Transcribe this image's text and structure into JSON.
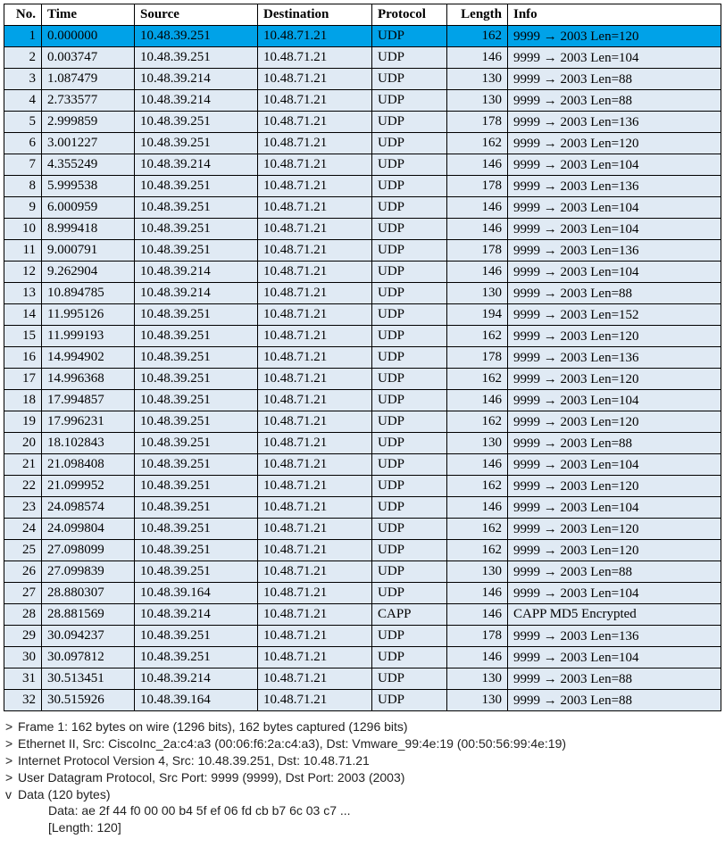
{
  "columns": [
    "No.",
    "Time",
    "Source",
    "Destination",
    "Protocol",
    "Length",
    "Info"
  ],
  "selected_row_index": 0,
  "row_bg": "#e0eaf4",
  "selected_bg": "#00a2e8",
  "rows": [
    {
      "no": "1",
      "time": "0.000000",
      "src": "10.48.39.251",
      "dst": "10.48.71.21",
      "proto": "UDP",
      "len": "162",
      "info": "9999 → 2003  Len=120"
    },
    {
      "no": "2",
      "time": "0.003747",
      "src": "10.48.39.251",
      "dst": "10.48.71.21",
      "proto": "UDP",
      "len": "146",
      "info": "9999 → 2003  Len=104"
    },
    {
      "no": "3",
      "time": "1.087479",
      "src": "10.48.39.214",
      "dst": "10.48.71.21",
      "proto": "UDP",
      "len": "130",
      "info": "9999 → 2003  Len=88"
    },
    {
      "no": "4",
      "time": "2.733577",
      "src": "10.48.39.214",
      "dst": "10.48.71.21",
      "proto": "UDP",
      "len": "130",
      "info": "9999 → 2003  Len=88"
    },
    {
      "no": "5",
      "time": "2.999859",
      "src": "10.48.39.251",
      "dst": "10.48.71.21",
      "proto": "UDP",
      "len": "178",
      "info": "9999 → 2003  Len=136"
    },
    {
      "no": "6",
      "time": "3.001227",
      "src": "10.48.39.251",
      "dst": "10.48.71.21",
      "proto": "UDP",
      "len": "162",
      "info": "9999 → 2003  Len=120"
    },
    {
      "no": "7",
      "time": "4.355249",
      "src": "10.48.39.214",
      "dst": "10.48.71.21",
      "proto": "UDP",
      "len": "146",
      "info": "9999 → 2003  Len=104"
    },
    {
      "no": "8",
      "time": "5.999538",
      "src": "10.48.39.251",
      "dst": "10.48.71.21",
      "proto": "UDP",
      "len": "178",
      "info": "9999 → 2003  Len=136"
    },
    {
      "no": "9",
      "time": "6.000959",
      "src": "10.48.39.251",
      "dst": "10.48.71.21",
      "proto": "UDP",
      "len": "146",
      "info": "9999 → 2003  Len=104"
    },
    {
      "no": "10",
      "time": "8.999418",
      "src": "10.48.39.251",
      "dst": "10.48.71.21",
      "proto": "UDP",
      "len": "146",
      "info": "9999 → 2003  Len=104"
    },
    {
      "no": "11",
      "time": "9.000791",
      "src": "10.48.39.251",
      "dst": "10.48.71.21",
      "proto": "UDP",
      "len": "178",
      "info": "9999 → 2003  Len=136"
    },
    {
      "no": "12",
      "time": "9.262904",
      "src": "10.48.39.214",
      "dst": "10.48.71.21",
      "proto": "UDP",
      "len": "146",
      "info": "9999 → 2003  Len=104"
    },
    {
      "no": "13",
      "time": "10.894785",
      "src": "10.48.39.214",
      "dst": "10.48.71.21",
      "proto": "UDP",
      "len": "130",
      "info": "9999 → 2003  Len=88"
    },
    {
      "no": "14",
      "time": "11.995126",
      "src": "10.48.39.251",
      "dst": "10.48.71.21",
      "proto": "UDP",
      "len": "194",
      "info": "9999 → 2003  Len=152"
    },
    {
      "no": "15",
      "time": "11.999193",
      "src": "10.48.39.251",
      "dst": "10.48.71.21",
      "proto": "UDP",
      "len": "162",
      "info": "9999 → 2003  Len=120"
    },
    {
      "no": "16",
      "time": "14.994902",
      "src": "10.48.39.251",
      "dst": "10.48.71.21",
      "proto": "UDP",
      "len": "178",
      "info": "9999 → 2003  Len=136"
    },
    {
      "no": "17",
      "time": "14.996368",
      "src": "10.48.39.251",
      "dst": "10.48.71.21",
      "proto": "UDP",
      "len": "162",
      "info": "9999 → 2003  Len=120"
    },
    {
      "no": "18",
      "time": "17.994857",
      "src": "10.48.39.251",
      "dst": "10.48.71.21",
      "proto": "UDP",
      "len": "146",
      "info": "9999 → 2003  Len=104"
    },
    {
      "no": "19",
      "time": "17.996231",
      "src": "10.48.39.251",
      "dst": "10.48.71.21",
      "proto": "UDP",
      "len": "162",
      "info": "9999 → 2003  Len=120"
    },
    {
      "no": "20",
      "time": "18.102843",
      "src": "10.48.39.251",
      "dst": "10.48.71.21",
      "proto": "UDP",
      "len": "130",
      "info": "9999 → 2003  Len=88"
    },
    {
      "no": "21",
      "time": "21.098408",
      "src": "10.48.39.251",
      "dst": "10.48.71.21",
      "proto": "UDP",
      "len": "146",
      "info": "9999 → 2003  Len=104"
    },
    {
      "no": "22",
      "time": "21.099952",
      "src": "10.48.39.251",
      "dst": "10.48.71.21",
      "proto": "UDP",
      "len": "162",
      "info": "9999 → 2003  Len=120"
    },
    {
      "no": "23",
      "time": "24.098574",
      "src": "10.48.39.251",
      "dst": "10.48.71.21",
      "proto": "UDP",
      "len": "146",
      "info": "9999 → 2003  Len=104"
    },
    {
      "no": "24",
      "time": "24.099804",
      "src": "10.48.39.251",
      "dst": "10.48.71.21",
      "proto": "UDP",
      "len": "162",
      "info": "9999 → 2003  Len=120"
    },
    {
      "no": "25",
      "time": "27.098099",
      "src": "10.48.39.251",
      "dst": "10.48.71.21",
      "proto": "UDP",
      "len": "162",
      "info": "9999 → 2003  Len=120"
    },
    {
      "no": "26",
      "time": "27.099839",
      "src": "10.48.39.251",
      "dst": "10.48.71.21",
      "proto": "UDP",
      "len": "130",
      "info": "9999 → 2003  Len=88"
    },
    {
      "no": "27",
      "time": "28.880307",
      "src": "10.48.39.164",
      "dst": "10.48.71.21",
      "proto": "UDP",
      "len": "146",
      "info": "9999 → 2003  Len=104"
    },
    {
      "no": "28",
      "time": "28.881569",
      "src": "10.48.39.214",
      "dst": "10.48.71.21",
      "proto": "CAPP",
      "len": "146",
      "info": "CAPP MD5 Encrypted"
    },
    {
      "no": "29",
      "time": "30.094237",
      "src": "10.48.39.251",
      "dst": "10.48.71.21",
      "proto": "UDP",
      "len": "178",
      "info": "9999 → 2003  Len=136"
    },
    {
      "no": "30",
      "time": "30.097812",
      "src": "10.48.39.251",
      "dst": "10.48.71.21",
      "proto": "UDP",
      "len": "146",
      "info": "9999 → 2003  Len=104"
    },
    {
      "no": "31",
      "time": "30.513451",
      "src": "10.48.39.214",
      "dst": "10.48.71.21",
      "proto": "UDP",
      "len": "130",
      "info": "9999 → 2003  Len=88"
    },
    {
      "no": "32",
      "time": "30.515926",
      "src": "10.48.39.164",
      "dst": "10.48.71.21",
      "proto": "UDP",
      "len": "130",
      "info": "9999 → 2003  Len=88"
    }
  ],
  "details": {
    "lines": [
      {
        "marker": ">",
        "text": "Frame 1: 162 bytes on wire (1296 bits), 162 bytes captured (1296 bits)"
      },
      {
        "marker": ">",
        "text": "Ethernet II, Src: CiscoInc_2a:c4:a3 (00:06:f6:2a:c4:a3), Dst: Vmware_99:4e:19 (00:50:56:99:4e:19)"
      },
      {
        "marker": ">",
        "text": "Internet Protocol Version 4, Src: 10.48.39.251, Dst: 10.48.71.21"
      },
      {
        "marker": ">",
        "text": "User Datagram Protocol, Src Port: 9999 (9999), Dst Port: 2003 (2003)"
      },
      {
        "marker": "v",
        "text": "Data (120 bytes)"
      }
    ],
    "data_hex": "Data: ae 2f 44 f0 00 00 b4 5f ef 06 fd cb b7 6c 03 c7 ...",
    "data_len": "[Length: 120]"
  }
}
